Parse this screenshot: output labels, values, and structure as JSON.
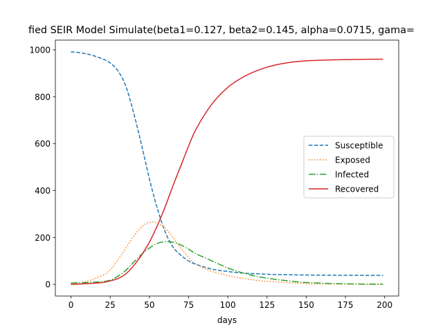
{
  "chart_data": {
    "type": "line",
    "title": "fied SEIR Model Simulate(beta1=0.127, beta2=0.145, alpha=0.0715, gama=",
    "xlabel": "days",
    "ylabel": "",
    "xlim": [
      -9.95,
      208.95
    ],
    "ylim": [
      -49.6,
      1041.6
    ],
    "xticks": [
      0,
      25,
      50,
      75,
      100,
      125,
      150,
      175,
      200
    ],
    "yticks": [
      0,
      200,
      400,
      600,
      800,
      1000
    ],
    "grid": false,
    "legend_position": "center-right",
    "x": [
      0,
      10,
      20,
      25,
      30,
      35,
      40,
      45,
      50,
      55,
      60,
      65,
      70,
      75,
      80,
      90,
      100,
      110,
      120,
      130,
      140,
      150,
      160,
      170,
      180,
      190,
      199
    ],
    "series": [
      {
        "name": "Susceptible",
        "color": "#1f77b4",
        "style": "dashed",
        "values": [
          992,
          983,
          962,
          944,
          910,
          845,
          730,
          595,
          450,
          325,
          225,
          160,
          125,
          100,
          85,
          65,
          55,
          48,
          45,
          42,
          41,
          40,
          39.5,
          39,
          38.8,
          38.6,
          38.5
        ]
      },
      {
        "name": "Exposed",
        "color": "#ff7f0e",
        "style": "dotted",
        "values": [
          2,
          13,
          38,
          62,
          105,
          155,
          205,
          245,
          265,
          262,
          240,
          200,
          155,
          115,
          85,
          55,
          38,
          25,
          16,
          11,
          7,
          4,
          2.5,
          1.5,
          1,
          0.6,
          0.4
        ]
      },
      {
        "name": "Infected",
        "color": "#2ca02c",
        "style": "dashdot",
        "values": [
          6,
          8,
          12,
          18,
          35,
          60,
          95,
          128,
          155,
          175,
          182,
          180,
          168,
          150,
          130,
          100,
          70,
          48,
          32,
          22,
          14,
          8,
          5,
          3,
          2,
          1.2,
          0.8
        ]
      },
      {
        "name": "Recovered",
        "color": "#d62728",
        "style": "solid",
        "values": [
          0,
          3,
          8,
          15,
          25,
          45,
          80,
          125,
          180,
          250,
          330,
          420,
          505,
          590,
          665,
          770,
          840,
          885,
          915,
          935,
          947,
          953,
          956,
          958,
          959,
          960,
          960
        ]
      }
    ]
  }
}
